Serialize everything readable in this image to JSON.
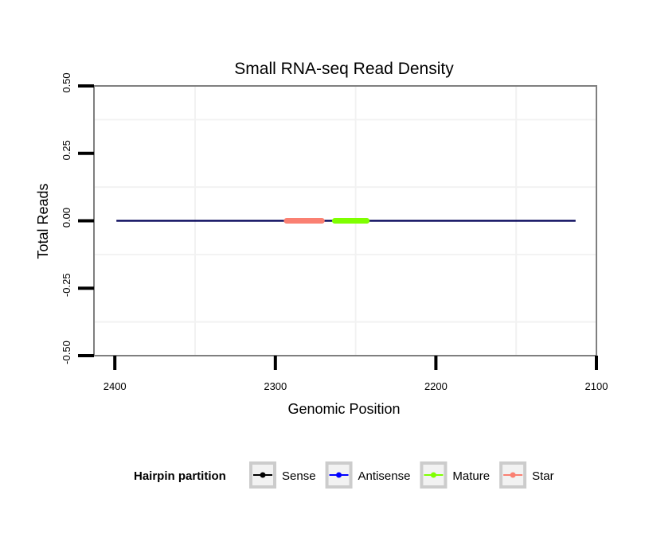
{
  "chart_data": {
    "type": "line",
    "title": "Small RNA-seq Read Density",
    "xlabel": "Genomic Position",
    "ylabel": "Total Reads",
    "x_reversed": true,
    "xlim": [
      2413,
      2100
    ],
    "ylim": [
      -0.5,
      0.5
    ],
    "x_ticks": [
      "2400",
      "2300",
      "2200",
      "2100"
    ],
    "y_ticks": [
      "-0.50",
      "-0.25",
      "0.00",
      "0.25",
      "0.50"
    ],
    "x_tick_values": [
      2400,
      2300,
      2200,
      2100
    ],
    "y_tick_values": [
      -0.5,
      -0.25,
      0,
      0.25,
      0.5
    ],
    "grid": true,
    "legend_title": "Hairpin partition",
    "legend_position": "bottom",
    "series": [
      {
        "name": "Sense",
        "color": "#000000",
        "x": [
          2399,
          2113
        ],
        "y": [
          0,
          0
        ]
      },
      {
        "name": "Antisense",
        "color": "#0000ff",
        "x": [
          2399,
          2113
        ],
        "y": [
          0,
          0
        ]
      },
      {
        "name": "Mature",
        "color": "#7fff00",
        "x": [
          2263,
          2243
        ],
        "y": [
          0,
          0
        ]
      },
      {
        "name": "Star",
        "color": "#fa8072",
        "x": [
          2293,
          2271
        ],
        "y": [
          0,
          0
        ]
      }
    ]
  }
}
